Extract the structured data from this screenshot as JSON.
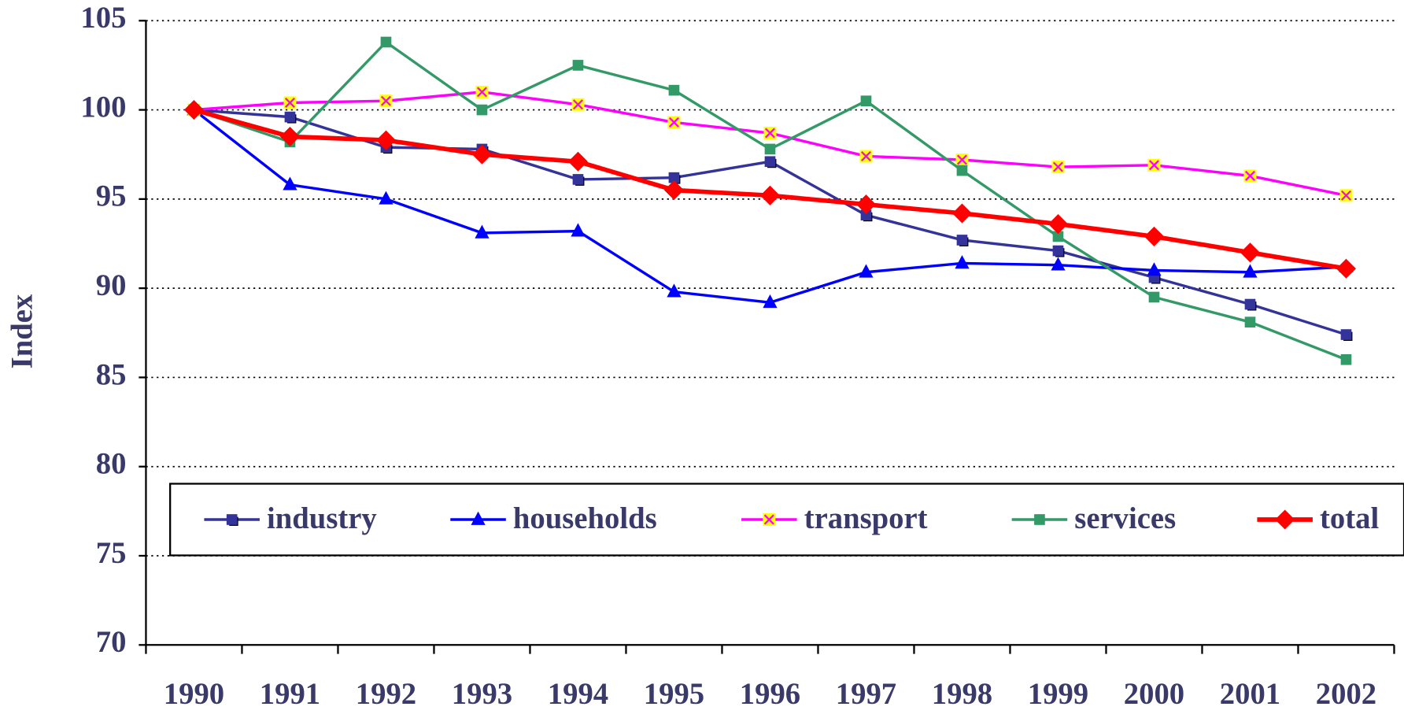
{
  "chart_data": {
    "type": "line",
    "y_label": "Index",
    "categories": [
      "1990",
      "1991",
      "1992",
      "1993",
      "1994",
      "1995",
      "1996",
      "1997",
      "1998",
      "1999",
      "2000",
      "2001",
      "2002"
    ],
    "series": [
      {
        "name": "industry",
        "color": "#333399",
        "marker": "square",
        "values": [
          100,
          99.6,
          97.9,
          97.8,
          96.1,
          96.2,
          97.1,
          94.1,
          92.7,
          92.1,
          90.6,
          89.1,
          87.4
        ]
      },
      {
        "name": "households",
        "color": "#0000ff",
        "marker": "triangle",
        "values": [
          100,
          95.8,
          95.0,
          93.1,
          93.2,
          89.8,
          89.2,
          90.9,
          91.4,
          91.3,
          91.0,
          90.9,
          91.2
        ]
      },
      {
        "name": "transport",
        "color": "#ff00ff",
        "marker": "cross",
        "values": [
          100,
          100.4,
          100.5,
          101.0,
          100.3,
          99.3,
          98.7,
          97.4,
          97.2,
          96.8,
          96.9,
          96.3,
          95.2
        ]
      },
      {
        "name": "services",
        "color": "#339966",
        "marker": "square",
        "values": [
          100,
          98.2,
          103.8,
          100.0,
          102.5,
          101.1,
          97.8,
          100.5,
          96.6,
          92.9,
          89.5,
          88.1,
          86.0
        ]
      },
      {
        "name": "total",
        "color": "#ff0000",
        "marker": "diamond",
        "values": [
          100,
          98.5,
          98.3,
          97.5,
          97.1,
          95.5,
          95.2,
          94.7,
          94.2,
          93.6,
          92.9,
          92.0,
          91.1
        ]
      }
    ],
    "ylim": [
      70,
      105
    ],
    "yticks": [
      70,
      75,
      80,
      85,
      90,
      95,
      100,
      105
    ],
    "grid": true,
    "legend": "bottom"
  }
}
